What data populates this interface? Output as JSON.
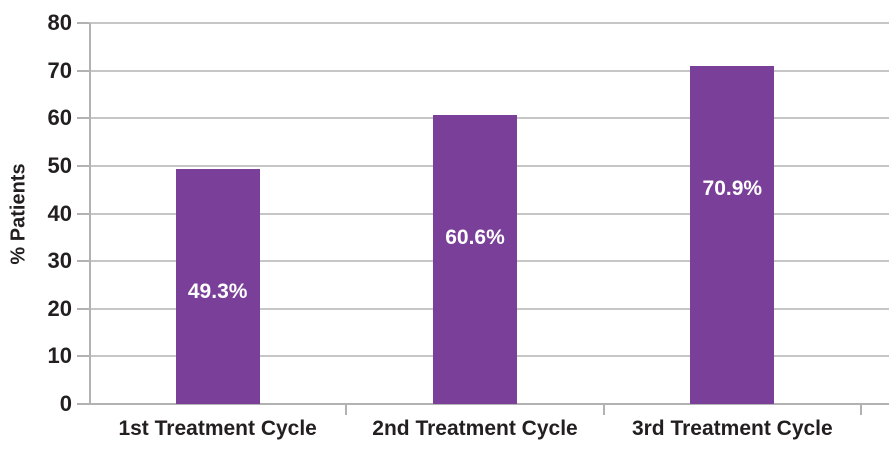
{
  "chart_data": {
    "type": "bar",
    "title": "",
    "xlabel": "",
    "ylabel": "% Patients",
    "categories": [
      "1st Treatment Cycle",
      "2nd Treatment Cycle",
      "3rd Treatment Cycle"
    ],
    "values": [
      49.3,
      60.6,
      70.9
    ],
    "value_labels": [
      "49.3%",
      "60.6%",
      "70.9%"
    ],
    "ylim": [
      0,
      80
    ],
    "yticks": [
      0,
      10,
      20,
      30,
      40,
      50,
      60,
      70,
      80
    ],
    "grid": "horizontal",
    "legend_position": "none",
    "colors": {
      "bar": "#7a3f99",
      "bar_label_text": "#ffffff",
      "gridline": "#c6c6c6",
      "axis": "#b2b2b2",
      "tick_mark": "#b2b2b2",
      "text": "#231f20"
    }
  }
}
